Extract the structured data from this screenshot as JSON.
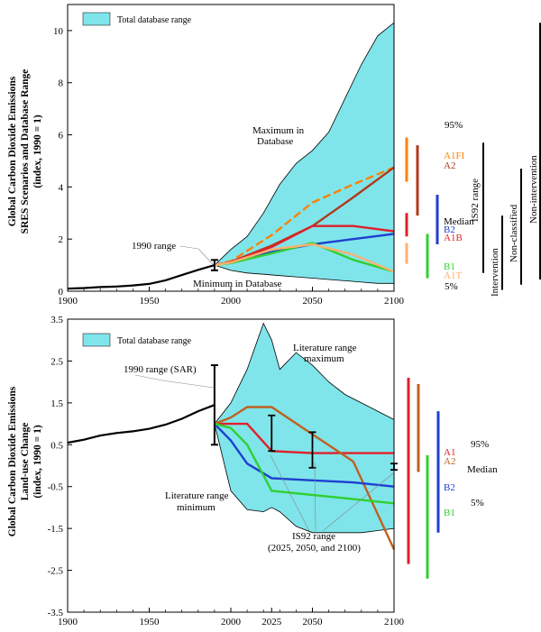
{
  "chart_data": [
    {
      "type": "line",
      "title": "",
      "ylabel_lines": [
        "Global Carbon Dioxide Emissions",
        "SRES Scenarios and Database Range",
        "(index, 1990 = 1)"
      ],
      "xlabel": "",
      "xlim": [
        1900,
        2100
      ],
      "ylim": [
        0,
        11
      ],
      "x_ticks": [
        1900,
        1950,
        2000,
        2050,
        2100
      ],
      "y_ticks": [
        0,
        2,
        4,
        6,
        8,
        10
      ],
      "grid": false,
      "legend": {
        "position": "top-left",
        "entries": [
          {
            "label": "Total database range",
            "color": "#7fe5ea"
          }
        ]
      },
      "history": {
        "x": [
          1900,
          1910,
          1920,
          1930,
          1940,
          1950,
          1960,
          1970,
          1980,
          1990
        ],
        "y": [
          0.1,
          0.12,
          0.16,
          0.18,
          0.22,
          0.28,
          0.42,
          0.62,
          0.82,
          1.0
        ]
      },
      "database_range": {
        "x": [
          1990,
          2000,
          2010,
          2020,
          2030,
          2040,
          2050,
          2060,
          2070,
          2080,
          2090,
          2100
        ],
        "upper": [
          1.0,
          1.6,
          2.1,
          3.0,
          4.1,
          4.9,
          5.4,
          6.1,
          7.4,
          8.7,
          9.8,
          10.3
        ],
        "lower": [
          1.0,
          0.8,
          0.7,
          0.65,
          0.6,
          0.55,
          0.5,
          0.45,
          0.4,
          0.35,
          0.3,
          0.3
        ]
      },
      "range_1990": [
        0.8,
        1.2
      ],
      "series": [
        {
          "name": "A1FI",
          "color": "#ff8000",
          "x": [
            1990,
            2000,
            2025,
            2050,
            2075,
            2100
          ],
          "y": [
            1.0,
            1.15,
            2.15,
            3.4,
            4.1,
            4.75
          ]
        },
        {
          "name": "A2",
          "color": "#b03a1a",
          "x": [
            1990,
            2000,
            2025,
            2050,
            2075,
            2100
          ],
          "y": [
            1.0,
            1.12,
            1.75,
            2.5,
            3.6,
            4.75
          ]
        },
        {
          "name": "B2",
          "color": "#1f3fd0",
          "x": [
            1990,
            2000,
            2025,
            2050,
            2075,
            2100
          ],
          "y": [
            1.0,
            1.1,
            1.5,
            1.8,
            2.0,
            2.2
          ]
        },
        {
          "name": "A1B",
          "color": "#e0202a",
          "x": [
            1990,
            2000,
            2025,
            2050,
            2075,
            2100
          ],
          "y": [
            1.0,
            1.12,
            1.7,
            2.5,
            2.5,
            2.3
          ]
        },
        {
          "name": "B1",
          "color": "#30d030",
          "x": [
            1990,
            2000,
            2025,
            2050,
            2075,
            2100
          ],
          "y": [
            1.0,
            1.08,
            1.45,
            1.85,
            1.2,
            0.75
          ]
        },
        {
          "name": "A1T",
          "color": "#ffb070",
          "x": [
            1990,
            2000,
            2025,
            2050,
            2075,
            2100
          ],
          "y": [
            1.0,
            1.1,
            1.6,
            1.8,
            1.4,
            0.75
          ]
        }
      ],
      "scenario_bars": [
        {
          "name": "A1FI",
          "color": "#ff8000",
          "range": [
            4.2,
            5.9
          ]
        },
        {
          "name": "A2",
          "color": "#b03a1a",
          "range": [
            2.9,
            5.6
          ]
        },
        {
          "name": "A1B",
          "color": "#e0202a",
          "range": [
            2.1,
            3.0
          ]
        },
        {
          "name": "B2",
          "color": "#1f3fd0",
          "range": [
            1.8,
            3.7
          ]
        },
        {
          "name": "B1",
          "color": "#30d030",
          "range": [
            0.5,
            2.2
          ]
        },
        {
          "name": "A1T",
          "color": "#ffb070",
          "range": [
            1.05,
            1.85
          ]
        }
      ],
      "group_bars": [
        {
          "name": "IS92 range",
          "range": [
            0.7,
            5.7
          ]
        },
        {
          "name": "Intervention",
          "range": [
            0.05,
            2.9
          ]
        },
        {
          "name": "Non-classified",
          "range": [
            0.25,
            4.7
          ]
        },
        {
          "name": "Non-intervention",
          "range": [
            0.45,
            10.3
          ]
        }
      ],
      "bar_annotations": [
        "95%",
        "Median",
        "5%"
      ],
      "annotations": [
        "Maximum in Database",
        "Minimum in Database",
        "1990 range"
      ]
    },
    {
      "type": "line",
      "title": "",
      "ylabel_lines": [
        "Global Carbon Dioxide Emissions",
        "Land-use Change",
        "(index, 1990 = 1)"
      ],
      "xlabel": "",
      "xlim": [
        1900,
        2100
      ],
      "ylim": [
        -3.5,
        3.5
      ],
      "x_ticks": [
        1900,
        1950,
        2000,
        2025,
        2050,
        2100
      ],
      "y_ticks": [
        -3.5,
        -2.5,
        -1.5,
        -0.5,
        0.5,
        1.5,
        2.5,
        3.5
      ],
      "grid": false,
      "legend": {
        "position": "top-left",
        "entries": [
          {
            "label": "Total database range",
            "color": "#7fe5ea"
          }
        ]
      },
      "history": {
        "x": [
          1900,
          1910,
          1920,
          1930,
          1940,
          1950,
          1960,
          1970,
          1980,
          1990
        ],
        "y": [
          0.55,
          0.62,
          0.72,
          0.78,
          0.82,
          0.88,
          0.98,
          1.12,
          1.3,
          1.45
        ]
      },
      "database_range": {
        "x": [
          1990,
          2000,
          2010,
          2020,
          2025,
          2030,
          2040,
          2050,
          2060,
          2070,
          2080,
          2090,
          2100
        ],
        "upper": [
          1.0,
          1.5,
          2.3,
          3.4,
          3.0,
          2.3,
          2.7,
          2.4,
          2.0,
          1.7,
          1.5,
          1.3,
          1.1
        ],
        "lower": [
          1.0,
          -0.6,
          -1.05,
          -1.1,
          -1.0,
          -1.1,
          -1.45,
          -1.6,
          -1.6,
          -1.6,
          -1.6,
          -1.55,
          -1.5
        ]
      },
      "range_1990": [
        0.5,
        2.4
      ],
      "is92_ranges": [
        {
          "year": 2025,
          "range": [
            0.35,
            1.2
          ]
        },
        {
          "year": 2050,
          "range": [
            -0.05,
            0.8
          ]
        },
        {
          "year": 2100,
          "range": [
            -0.1,
            0.05
          ]
        }
      ],
      "series": [
        {
          "name": "A1",
          "color": "#e0202a",
          "x": [
            1990,
            2000,
            2010,
            2025,
            2050,
            2075,
            2100
          ],
          "y": [
            1.0,
            1.0,
            1.0,
            0.35,
            0.3,
            0.3,
            0.3
          ]
        },
        {
          "name": "A2",
          "color": "#c06020",
          "x": [
            1990,
            2000,
            2010,
            2025,
            2050,
            2075,
            2100
          ],
          "y": [
            1.0,
            1.15,
            1.4,
            1.4,
            0.75,
            0.1,
            -2.0
          ]
        },
        {
          "name": "B2",
          "color": "#1f3fd0",
          "x": [
            1990,
            2000,
            2010,
            2025,
            2050,
            2075,
            2100
          ],
          "y": [
            1.0,
            0.6,
            0.05,
            -0.3,
            -0.35,
            -0.4,
            -0.5
          ]
        },
        {
          "name": "B1",
          "color": "#30d030",
          "x": [
            1990,
            2000,
            2010,
            2025,
            2050,
            2075,
            2100
          ],
          "y": [
            1.0,
            0.9,
            0.5,
            -0.6,
            -0.7,
            -0.8,
            -0.9
          ]
        }
      ],
      "scenario_bars": [
        {
          "name": "A1",
          "color": "#e0202a",
          "range": [
            -2.35,
            2.1
          ]
        },
        {
          "name": "A2",
          "color": "#c06020",
          "range": [
            -0.15,
            1.95
          ]
        },
        {
          "name": "B2",
          "color": "#1f3fd0",
          "range": [
            -1.6,
            1.3
          ]
        },
        {
          "name": "B1",
          "color": "#30d030",
          "range": [
            -2.7,
            0.25
          ]
        }
      ],
      "bar_annotations": [
        "95%",
        "Median",
        "5%"
      ],
      "annotations": [
        "Literature range maximum",
        "Literature range minimum",
        "1990 range (SAR)",
        "IS92 range",
        "(2025, 2050, and 2100)"
      ]
    }
  ],
  "labels": {
    "top_legend": "Total database range",
    "top_max": [
      "Maximum in",
      "Database"
    ],
    "top_min": "Minimum in Database",
    "top_range1990": "1990 range",
    "top_95": "95%",
    "top_median": "Median",
    "top_5": "5%",
    "top_is92": "IS92 range",
    "top_intervention": "Intervention",
    "top_nonclassified": "Non-classified",
    "top_nonintervention": "Non-intervention",
    "top_ylabel_1": "Global Carbon Dioxide Emissions",
    "top_ylabel_2": "SRES Scenarios and Database Range",
    "top_ylabel_3": "(index, 1990 = 1)",
    "bot_legend": "Total database range",
    "bot_litmax": [
      "Literature range",
      "maximum"
    ],
    "bot_litmin": [
      "Literature range",
      "minimum"
    ],
    "bot_range1990": "1990 range (SAR)",
    "bot_is92": [
      "IS92 range",
      "(2025, 2050, and 2100)"
    ],
    "bot_95": "95%",
    "bot_median": "Median",
    "bot_5": "5%",
    "bot_ylabel_1": "Global Carbon Dioxide Emissions",
    "bot_ylabel_2": "Land-use Change",
    "bot_ylabel_3": "(index, 1990 = 1)"
  },
  "colors": {
    "range_fill": "#7fe5ea",
    "axis": "#000000"
  }
}
